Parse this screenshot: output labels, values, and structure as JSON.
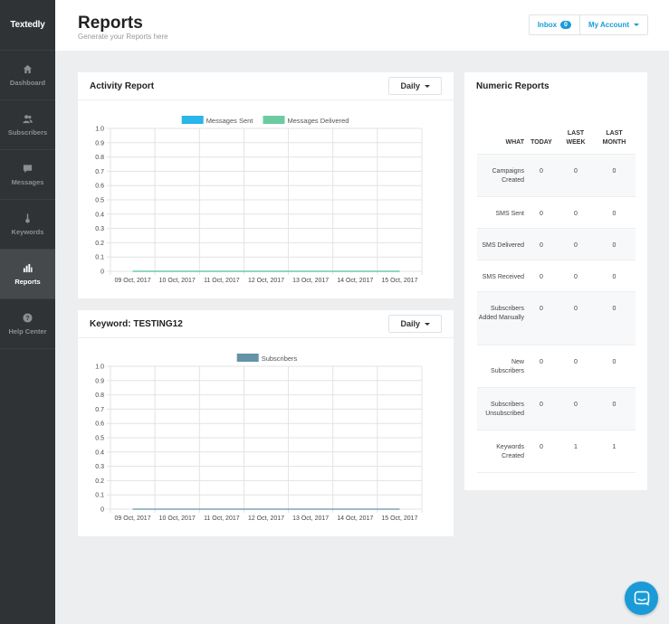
{
  "sidebar": {
    "logo": "Textedly",
    "items": [
      {
        "label": "Dashboard",
        "icon": "home-icon"
      },
      {
        "label": "Subscribers",
        "icon": "users-icon"
      },
      {
        "label": "Messages",
        "icon": "chat-icon"
      },
      {
        "label": "Keywords",
        "icon": "key-icon"
      },
      {
        "label": "Reports",
        "icon": "bar-chart-icon",
        "active": true
      },
      {
        "label": "Help Center",
        "icon": "question-icon"
      }
    ]
  },
  "header": {
    "title": "Reports",
    "subtitle": "Generate your Reports here",
    "inbox_label": "Inbox",
    "inbox_count": "0",
    "account_label": "My Account"
  },
  "activity": {
    "title": "Activity Report",
    "period": "Daily"
  },
  "keyword": {
    "title": "Keyword: TESTING12",
    "period": "Daily"
  },
  "numeric": {
    "title": "Numeric Reports",
    "headers": [
      "WHAT",
      "TODAY",
      "LAST WEEK",
      "LAST MONTH"
    ],
    "rows": [
      {
        "what": "Campaigns Created",
        "today": "0",
        "week": "0",
        "month": "0"
      },
      {
        "what": "SMS Sent",
        "today": "0",
        "week": "0",
        "month": "0"
      },
      {
        "what": "SMS Delivered",
        "today": "0",
        "week": "0",
        "month": "0"
      },
      {
        "what": "SMS Received",
        "today": "0",
        "week": "0",
        "month": "0"
      },
      {
        "what": "Subscribers Added Manually",
        "today": "0",
        "week": "0",
        "month": "0"
      },
      {
        "what": "New Subscribers",
        "today": "0",
        "week": "0",
        "month": "0"
      },
      {
        "what": "Subscribers Unsubscribed",
        "today": "0",
        "week": "0",
        "month": "0"
      },
      {
        "what": "Keywords Created",
        "today": "0",
        "week": "1",
        "month": "1"
      }
    ]
  },
  "colors": {
    "accent": "#1a9bd7",
    "sidebar": "#2f3335"
  },
  "chart_data": [
    {
      "type": "line",
      "categories": [
        "09 Oct, 2017",
        "10 Oct, 2017",
        "11 Oct, 2017",
        "12 Oct, 2017",
        "13 Oct, 2017",
        "14 Oct, 2017",
        "15 Oct, 2017"
      ],
      "yticks": [
        "0",
        "0.1",
        "0.2",
        "0.3",
        "0.4",
        "0.5",
        "0.6",
        "0.7",
        "0.8",
        "0.9",
        "1.0"
      ],
      "ylim": [
        0,
        1
      ],
      "grid": true,
      "legend_position": "top",
      "series": [
        {
          "name": "Messages Sent",
          "color": "#29b6e8",
          "values": [
            0,
            0,
            0,
            0,
            0,
            0,
            0
          ]
        },
        {
          "name": "Messages Delivered",
          "color": "#6ccba0",
          "values": [
            0,
            0,
            0,
            0,
            0,
            0,
            0
          ]
        }
      ]
    },
    {
      "type": "line",
      "categories": [
        "09 Oct, 2017",
        "10 Oct, 2017",
        "11 Oct, 2017",
        "12 Oct, 2017",
        "13 Oct, 2017",
        "14 Oct, 2017",
        "15 Oct, 2017"
      ],
      "yticks": [
        "0",
        "0.1",
        "0.2",
        "0.3",
        "0.4",
        "0.5",
        "0.6",
        "0.7",
        "0.8",
        "0.9",
        "1.0"
      ],
      "ylim": [
        0,
        1
      ],
      "grid": true,
      "legend_position": "top",
      "series": [
        {
          "name": "Subscribers",
          "color": "#6293a6",
          "values": [
            0,
            0,
            0,
            0,
            0,
            0,
            0
          ]
        }
      ]
    }
  ]
}
